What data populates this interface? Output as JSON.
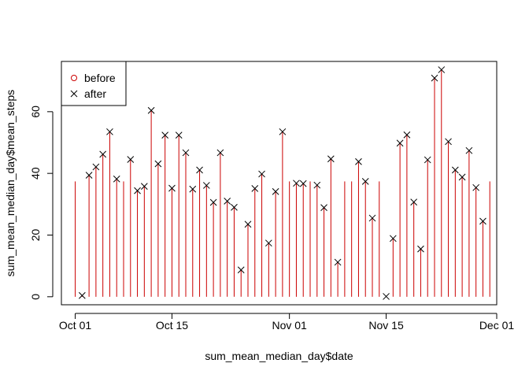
{
  "chart_data": {
    "type": "line",
    "title": "",
    "xlabel": "sum_mean_median_day$date",
    "ylabel": "sum_mean_median_day$mean_steps",
    "x_ticks": [
      {
        "date": "2012-10-01",
        "label": "Oct 01"
      },
      {
        "date": "2012-10-15",
        "label": "Oct 15"
      },
      {
        "date": "2012-11-01",
        "label": "Nov 01"
      },
      {
        "date": "2012-11-15",
        "label": "Nov 15"
      },
      {
        "date": "2012-12-01",
        "label": "Dec 01"
      }
    ],
    "y_ticks": [
      0,
      20,
      40,
      60
    ],
    "xlim": [
      "2012-09-29",
      "2012-12-01"
    ],
    "ylim": [
      -2.6,
      76.3
    ],
    "dates": [
      "2012-10-01",
      "2012-10-02",
      "2012-10-03",
      "2012-10-04",
      "2012-10-05",
      "2012-10-06",
      "2012-10-07",
      "2012-10-08",
      "2012-10-09",
      "2012-10-10",
      "2012-10-11",
      "2012-10-12",
      "2012-10-13",
      "2012-10-14",
      "2012-10-15",
      "2012-10-16",
      "2012-10-17",
      "2012-10-18",
      "2012-10-19",
      "2012-10-20",
      "2012-10-21",
      "2012-10-22",
      "2012-10-23",
      "2012-10-24",
      "2012-10-25",
      "2012-10-26",
      "2012-10-27",
      "2012-10-28",
      "2012-10-29",
      "2012-10-30",
      "2012-10-31",
      "2012-11-01",
      "2012-11-02",
      "2012-11-03",
      "2012-11-04",
      "2012-11-05",
      "2012-11-06",
      "2012-11-07",
      "2012-11-08",
      "2012-11-09",
      "2012-11-10",
      "2012-11-11",
      "2012-11-12",
      "2012-11-13",
      "2012-11-14",
      "2012-11-15",
      "2012-11-16",
      "2012-11-17",
      "2012-11-18",
      "2012-11-19",
      "2012-11-20",
      "2012-11-21",
      "2012-11-22",
      "2012-11-23",
      "2012-11-24",
      "2012-11-25",
      "2012-11-26",
      "2012-11-27",
      "2012-11-28",
      "2012-11-29",
      "2012-11-30"
    ],
    "series": [
      {
        "name": "before",
        "type": "vertical-lines",
        "color": "#CC0000",
        "marker": "circle",
        "values": [
          37.4,
          0.4,
          39.4,
          42.1,
          46.2,
          53.5,
          38.2,
          37.4,
          44.5,
          34.4,
          35.8,
          60.4,
          43.1,
          52.4,
          35.2,
          52.4,
          46.7,
          34.9,
          41.1,
          36.1,
          30.6,
          46.7,
          31.0,
          29.0,
          8.7,
          23.5,
          35.1,
          39.8,
          17.4,
          34.1,
          53.5,
          37.4,
          36.8,
          36.7,
          37.4,
          36.2,
          28.9,
          44.7,
          11.2,
          37.4,
          37.4,
          43.8,
          37.4,
          25.5,
          37.4,
          0.1,
          18.9,
          49.8,
          52.5,
          30.7,
          15.5,
          44.4,
          70.9,
          73.6,
          50.3,
          41.1,
          38.8,
          47.4,
          35.4,
          24.5,
          37.4
        ]
      },
      {
        "name": "after",
        "type": "points",
        "color": "#000000",
        "marker": "x",
        "values": [
          null,
          0.4,
          39.4,
          42.1,
          46.2,
          53.5,
          38.2,
          null,
          44.5,
          34.4,
          35.8,
          60.4,
          43.1,
          52.4,
          35.2,
          52.4,
          46.7,
          34.9,
          41.1,
          36.1,
          30.6,
          46.7,
          31.0,
          29.0,
          8.7,
          23.5,
          35.1,
          39.8,
          17.4,
          34.1,
          53.5,
          null,
          36.8,
          36.7,
          null,
          36.2,
          28.9,
          44.7,
          11.2,
          null,
          null,
          43.8,
          37.4,
          25.5,
          null,
          0.1,
          18.9,
          49.8,
          52.5,
          30.7,
          15.5,
          44.4,
          70.9,
          73.6,
          50.3,
          41.1,
          38.8,
          47.4,
          35.4,
          24.5,
          null
        ]
      }
    ],
    "legend": {
      "position": "top-left",
      "entries": [
        {
          "label": "before",
          "symbol": "circle",
          "color": "#CC0000"
        },
        {
          "label": "after",
          "symbol": "x",
          "color": "#000000"
        }
      ]
    },
    "grid": false
  }
}
